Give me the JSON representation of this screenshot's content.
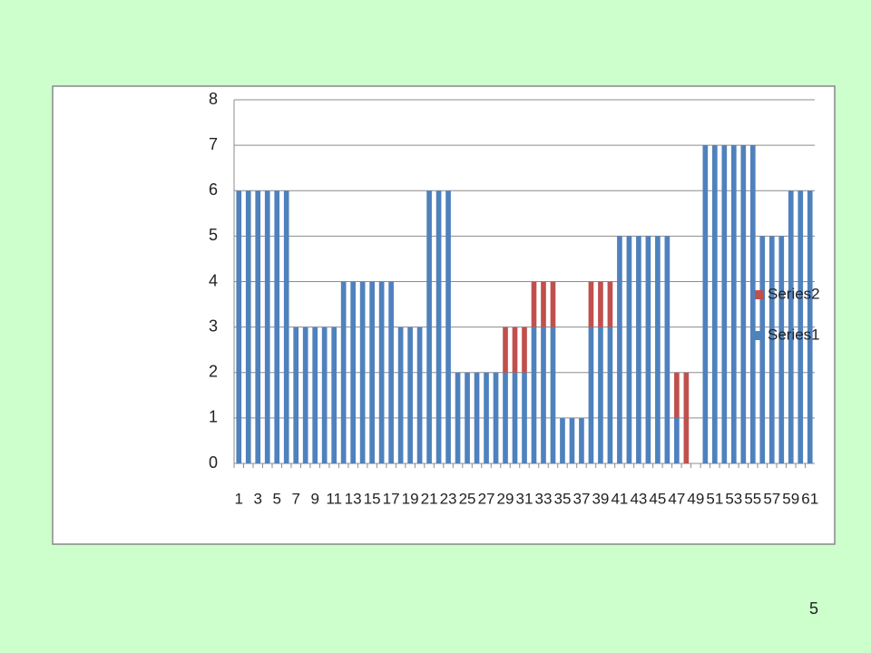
{
  "chart_data": {
    "type": "stacked-bar",
    "categories": [
      "1",
      null,
      "3",
      null,
      "5",
      null,
      "7",
      null,
      "9",
      null,
      "11",
      null,
      "13",
      null,
      "15",
      null,
      "17",
      null,
      "19",
      null,
      "21",
      null,
      "23",
      null,
      "25",
      null,
      "27",
      null,
      "29",
      null,
      "31",
      null,
      "33",
      null,
      "35",
      null,
      "37",
      null,
      "39",
      null,
      "41",
      null,
      "43",
      null,
      "45",
      null,
      "47",
      null,
      "49",
      null,
      "51",
      null,
      "53",
      null,
      "55",
      null,
      "57",
      null,
      "59",
      null,
      "61"
    ],
    "series": [
      {
        "name": "Series1",
        "color": "#4f81bd",
        "values": [
          6,
          6,
          6,
          6,
          6,
          6,
          3,
          3,
          3,
          3,
          3,
          4,
          4,
          4,
          4,
          4,
          4,
          3,
          3,
          3,
          6,
          6,
          6,
          2,
          2,
          2,
          2,
          2,
          2,
          2,
          2,
          3,
          3,
          3,
          1,
          1,
          1,
          3,
          3,
          3,
          5,
          5,
          5,
          5,
          5,
          5,
          1,
          0,
          0,
          7,
          7,
          7,
          7,
          7,
          7,
          5,
          5,
          5,
          6,
          6,
          6
        ]
      },
      {
        "name": "Series2",
        "color": "#c0504d",
        "values": [
          0,
          0,
          0,
          0,
          0,
          0,
          0,
          0,
          0,
          0,
          0,
          0,
          0,
          0,
          0,
          0,
          0,
          0,
          0,
          0,
          0,
          0,
          0,
          0,
          0,
          0,
          0,
          0,
          1,
          1,
          1,
          1,
          1,
          1,
          0,
          0,
          0,
          1,
          1,
          1,
          0,
          0,
          0,
          0,
          0,
          0,
          1,
          2,
          0,
          0,
          0,
          0,
          0,
          0,
          0,
          0,
          0,
          0,
          0,
          0,
          0
        ]
      }
    ],
    "ylim": [
      0,
      8
    ],
    "yticks": [
      0,
      1,
      2,
      3,
      4,
      5,
      6,
      7,
      8
    ],
    "grid": true
  },
  "page_number": "5"
}
